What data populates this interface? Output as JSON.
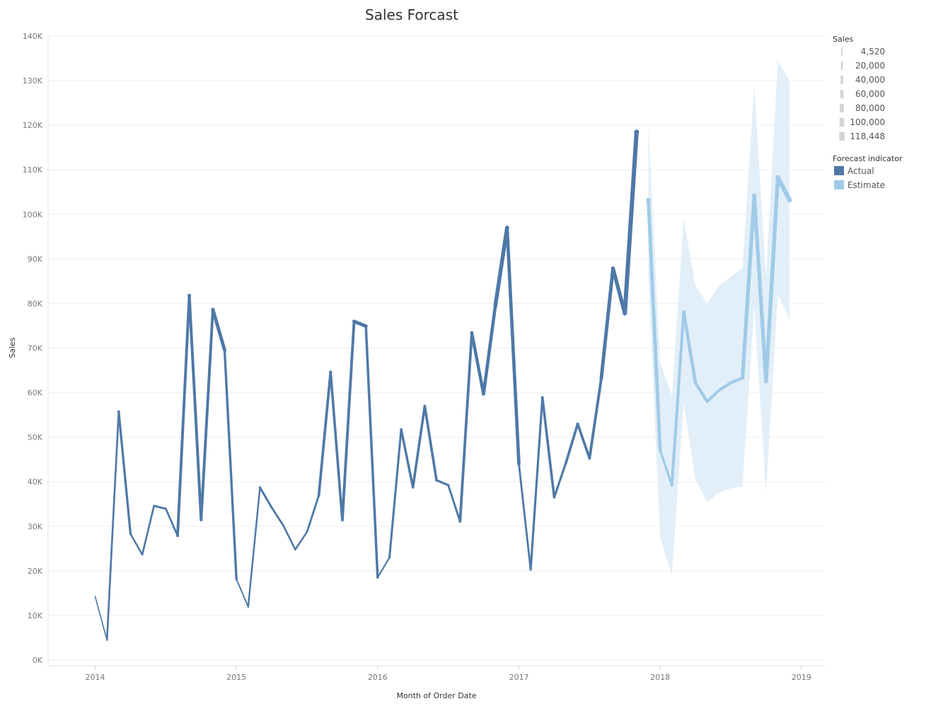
{
  "chart_data": {
    "type": "line",
    "title": "Sales Forcast",
    "xlabel": "Month of Order Date",
    "ylabel": "Sales",
    "x_ticks": [
      "2014",
      "2015",
      "2016",
      "2017",
      "2018",
      "2019"
    ],
    "y_ticks": [
      "0K",
      "10K",
      "20K",
      "30K",
      "40K",
      "50K",
      "60K",
      "70K",
      "80K",
      "90K",
      "100K",
      "110K",
      "120K",
      "130K",
      "140K"
    ],
    "ylim": [
      0,
      140000
    ],
    "xlim": [
      "2013-09",
      "2019-03"
    ],
    "grid": true,
    "line_width_encodes": "Sales",
    "series": [
      {
        "name": "Actual",
        "color": "#4e79a7",
        "x": [
          "2014-01",
          "2014-02",
          "2014-03",
          "2014-04",
          "2014-05",
          "2014-06",
          "2014-07",
          "2014-08",
          "2014-09",
          "2014-10",
          "2014-11",
          "2014-12",
          "2015-01",
          "2015-02",
          "2015-03",
          "2015-04",
          "2015-05",
          "2015-06",
          "2015-07",
          "2015-08",
          "2015-09",
          "2015-10",
          "2015-11",
          "2015-12",
          "2016-01",
          "2016-02",
          "2016-03",
          "2016-04",
          "2016-05",
          "2016-06",
          "2016-07",
          "2016-08",
          "2016-09",
          "2016-10",
          "2016-11",
          "2016-12",
          "2017-01",
          "2017-02",
          "2017-03",
          "2017-04",
          "2017-05",
          "2017-06",
          "2017-07",
          "2017-08",
          "2017-09",
          "2017-10",
          "2017-11"
        ],
        "values": [
          14237,
          4520,
          55691,
          28295,
          23648,
          34595,
          33946,
          27909,
          81777,
          31453,
          78629,
          69546,
          18174,
          11951,
          38726,
          34195,
          30132,
          24797,
          28765,
          36898,
          64596,
          31405,
          75973,
          74919,
          18542,
          22979,
          51716,
          38750,
          56988,
          40344,
          39262,
          31115,
          73410,
          59688,
          79500,
          96999,
          43971,
          20301,
          58872,
          36522,
          44261,
          52982,
          45264,
          63121,
          87867,
          77777,
          118448
        ]
      },
      {
        "name": "Estimate",
        "color": "#a0cbe8",
        "x": [
          "2017-12",
          "2018-01",
          "2018-02",
          "2018-03",
          "2018-04",
          "2018-05",
          "2018-06",
          "2018-07",
          "2018-08",
          "2018-09",
          "2018-10",
          "2018-11",
          "2018-12"
        ],
        "values": [
          103200,
          47100,
          39200,
          78100,
          62200,
          58000,
          60500,
          62200,
          63300,
          104200,
          62500,
          108300,
          103200
        ],
        "upper": [
          120500,
          67000,
          59200,
          99000,
          84000,
          80000,
          84000,
          86000,
          88000,
          129000,
          86000,
          134500,
          130000
        ],
        "lower": [
          86000,
          27500,
          19000,
          57500,
          40500,
          35500,
          37500,
          38500,
          39000,
          79000,
          37500,
          82000,
          76500
        ]
      }
    ],
    "legend": {
      "position": "top-right",
      "size_title": "Sales",
      "size_entries": [
        {
          "label": "4,520",
          "value": 4520
        },
        {
          "label": "20,000",
          "value": 20000
        },
        {
          "label": "40,000",
          "value": 40000
        },
        {
          "label": "60,000",
          "value": 60000
        },
        {
          "label": "80,000",
          "value": 80000
        },
        {
          "label": "100,000",
          "value": 100000
        },
        {
          "label": "118,448",
          "value": 118448
        }
      ],
      "color_title": "Forecast indicator",
      "color_entries": [
        {
          "label": "Actual",
          "color": "#4e79a7"
        },
        {
          "label": "Estimate",
          "color": "#a0cbe8"
        }
      ]
    }
  }
}
